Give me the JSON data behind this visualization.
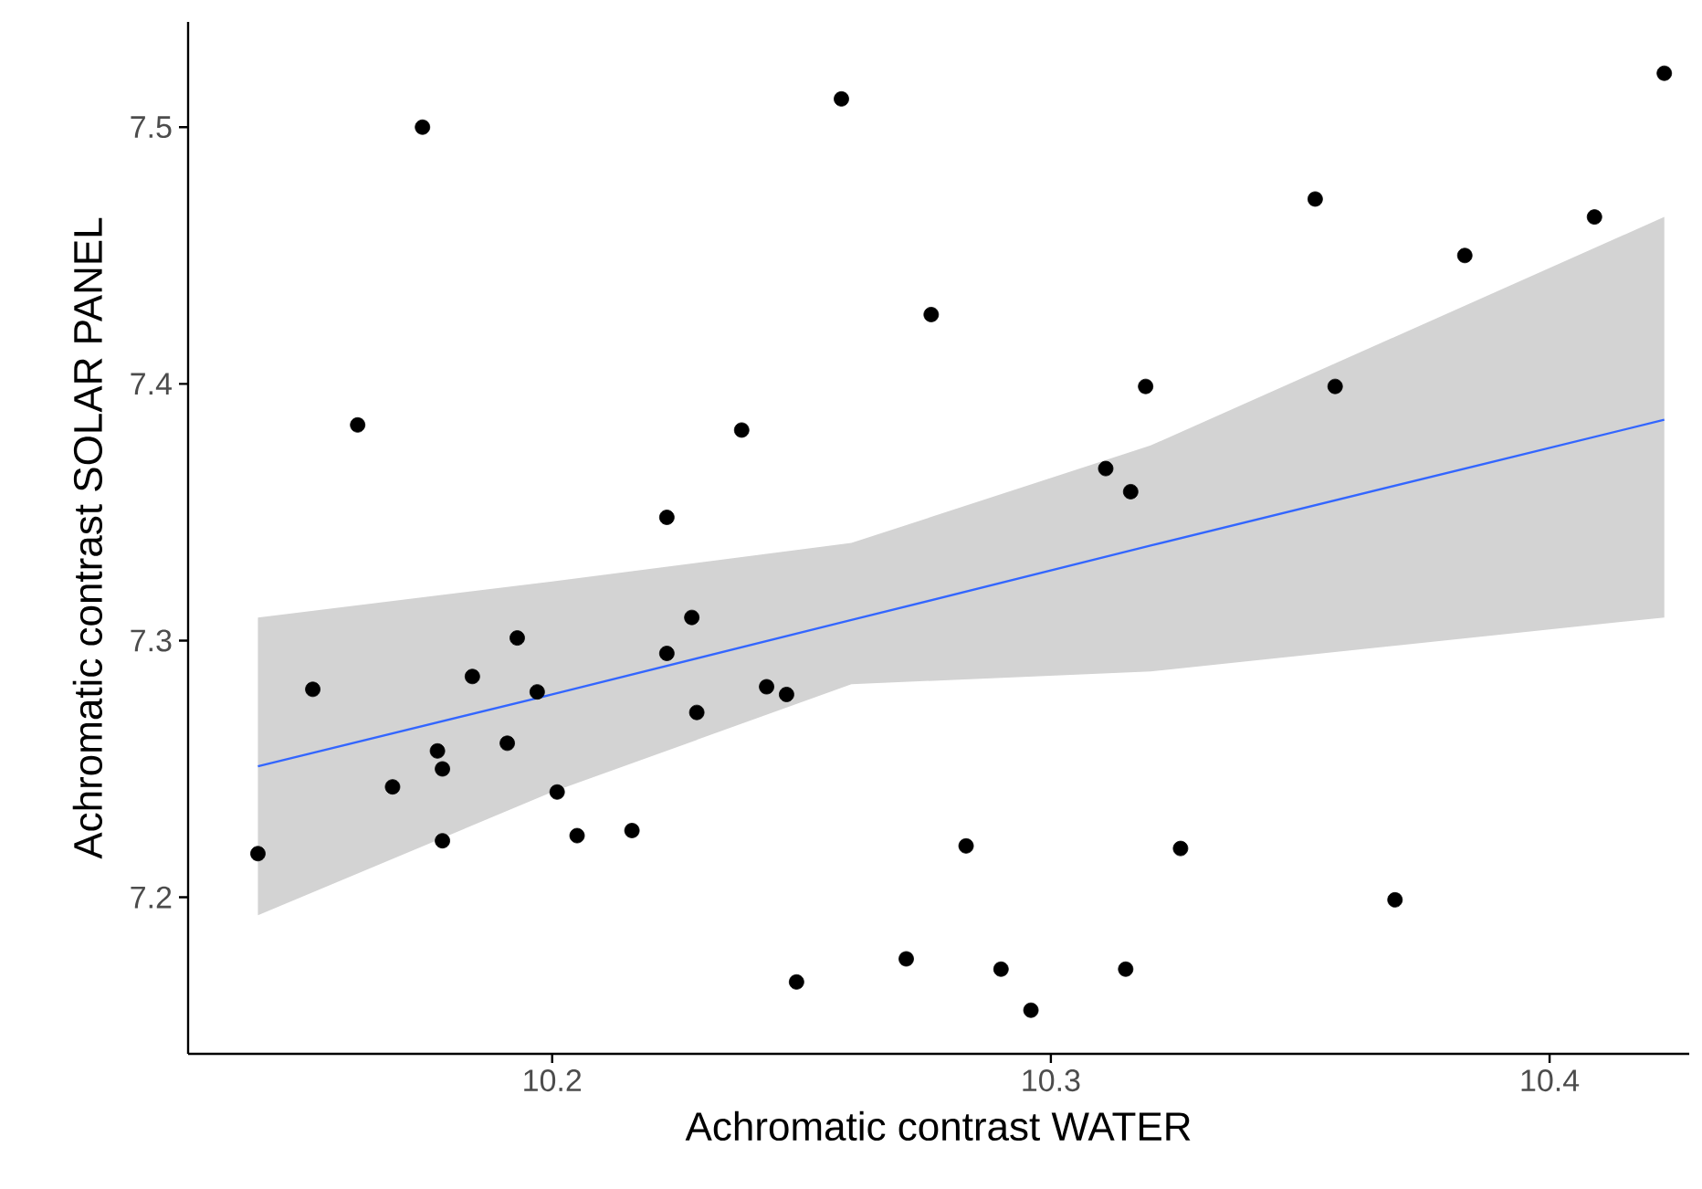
{
  "chart_data": {
    "type": "scatter",
    "xlabel": "Achromatic contrast WATER",
    "ylabel": "Achromatic contrast SOLAR PANEL",
    "xlim": [
      10.127,
      10.428
    ],
    "ylim": [
      7.139,
      7.541
    ],
    "xticks": [
      10.2,
      10.3,
      10.4
    ],
    "yticks": [
      7.2,
      7.3,
      7.4,
      7.5
    ],
    "grid": false,
    "series": [
      {
        "marker": "circle",
        "color": "#000000",
        "x": [
          10.141,
          10.152,
          10.161,
          10.174,
          10.168,
          10.177,
          10.178,
          10.178,
          10.184,
          10.193,
          10.191,
          10.197,
          10.201,
          10.205,
          10.216,
          10.223,
          10.228,
          10.229,
          10.243,
          10.247,
          10.249,
          10.271,
          10.258,
          10.276,
          10.238,
          10.223,
          10.353,
          10.423,
          10.383,
          10.409,
          10.319,
          10.357,
          10.311,
          10.316,
          10.283,
          10.326,
          10.369,
          10.29,
          10.315,
          10.296
        ],
        "values": [
          7.217,
          7.281,
          7.384,
          7.5,
          7.243,
          7.257,
          7.25,
          7.222,
          7.286,
          7.301,
          7.26,
          7.28,
          7.241,
          7.224,
          7.226,
          7.295,
          7.309,
          7.272,
          7.282,
          7.279,
          7.167,
          7.176,
          7.511,
          7.427,
          7.382,
          7.348,
          7.472,
          7.521,
          7.45,
          7.465,
          7.399,
          7.399,
          7.367,
          7.358,
          7.22,
          7.219,
          7.199,
          7.172,
          7.172,
          7.156
        ]
      },
      {
        "type": "line",
        "marker": "none",
        "color": "#3366ff",
        "x": [
          10.141,
          10.2,
          10.26,
          10.32,
          10.423
        ],
        "values": [
          7.251,
          7.279,
          7.308,
          7.337,
          7.386
        ],
        "lower": [
          7.193,
          7.241,
          7.283,
          7.288,
          7.309
        ],
        "upper": [
          7.309,
          7.323,
          7.338,
          7.376,
          7.465
        ]
      }
    ]
  }
}
